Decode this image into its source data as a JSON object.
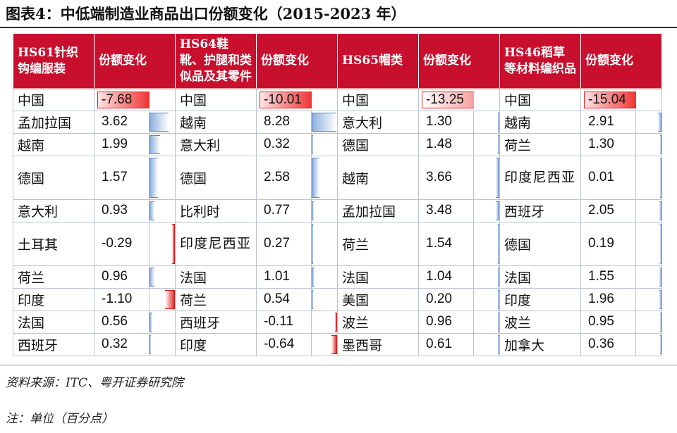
{
  "figure_title": "图表4：中低端制造业商品出口份额变化（2015-2023 年）",
  "columns": [
    {
      "category": "HS61针织钩编服装",
      "value_header": "份额变化",
      "rows": [
        {
          "country": "中国",
          "value": "-7.68",
          "v": -7.68
        },
        {
          "country": "孟加拉国",
          "value": "3.62",
          "v": 3.62
        },
        {
          "country": "越南",
          "value": "1.99",
          "v": 1.99
        },
        {
          "country": "德国",
          "value": "1.57",
          "v": 1.57
        },
        {
          "country": "意大利",
          "value": "0.93",
          "v": 0.93
        },
        {
          "country": "土耳其",
          "value": "-0.29",
          "v": -0.29
        },
        {
          "country": "荷兰",
          "value": "0.96",
          "v": 0.96
        },
        {
          "country": "印度",
          "value": "-1.10",
          "v": -1.1
        },
        {
          "country": "法国",
          "value": "0.56",
          "v": 0.56
        },
        {
          "country": "西班牙",
          "value": "0.32",
          "v": 0.32
        }
      ]
    },
    {
      "category": "HS64鞋靴、护腿和类似品及其零件",
      "value_header": "份额变化",
      "rows": [
        {
          "country": "中国",
          "value": "-10.01",
          "v": -10.01
        },
        {
          "country": "越南",
          "value": "8.28",
          "v": 8.28
        },
        {
          "country": "意大利",
          "value": "0.32",
          "v": 0.32
        },
        {
          "country": "德国",
          "value": "2.58",
          "v": 2.58
        },
        {
          "country": "比利时",
          "value": "0.77",
          "v": 0.77
        },
        {
          "country": "印度尼西亚",
          "value": "0.27",
          "v": 0.27
        },
        {
          "country": "法国",
          "value": "1.01",
          "v": 1.01
        },
        {
          "country": "荷兰",
          "value": "0.54",
          "v": 0.54
        },
        {
          "country": "西班牙",
          "value": "-0.11",
          "v": -0.11
        },
        {
          "country": "印度",
          "value": "-0.64",
          "v": -0.64
        }
      ]
    },
    {
      "category": "HS65帽类",
      "value_header": "份额变化",
      "rows": [
        {
          "country": "中国",
          "value": "-13.25",
          "v": -13.25
        },
        {
          "country": "意大利",
          "value": "1.30",
          "v": 1.3
        },
        {
          "country": "德国",
          "value": "1.48",
          "v": 1.48
        },
        {
          "country": "越南",
          "value": "3.66",
          "v": 3.66
        },
        {
          "country": "孟加拉国",
          "value": "3.48",
          "v": 3.48
        },
        {
          "country": "荷兰",
          "value": "1.54",
          "v": 1.54
        },
        {
          "country": "法国",
          "value": "1.04",
          "v": 1.04
        },
        {
          "country": "美国",
          "value": "0.20",
          "v": 0.2
        },
        {
          "country": "波兰",
          "value": "0.96",
          "v": 0.96
        },
        {
          "country": "墨西哥",
          "value": "0.61",
          "v": 0.61
        }
      ]
    },
    {
      "category": "HS46稻草等材料编织品",
      "value_header": "份额变化",
      "rows": [
        {
          "country": "中国",
          "value": "-15.04",
          "v": -15.04
        },
        {
          "country": "越南",
          "value": "2.91",
          "v": 2.91
        },
        {
          "country": "荷兰",
          "value": "1.30",
          "v": 1.3
        },
        {
          "country": "印度尼西亚",
          "value": "0.01",
          "v": 0.01
        },
        {
          "country": "西班牙",
          "value": "2.05",
          "v": 2.05
        },
        {
          "country": "德国",
          "value": "0.19",
          "v": 0.19
        },
        {
          "country": "法国",
          "value": "1.55",
          "v": 1.55
        },
        {
          "country": "印度",
          "value": "1.96",
          "v": 1.96
        },
        {
          "country": "波兰",
          "value": "0.95",
          "v": 0.95
        },
        {
          "country": "加拿大",
          "value": "0.36",
          "v": 0.36
        }
      ]
    }
  ],
  "source": "资料来源：ITC、粤开证券研究院",
  "note": "注：单位（百分点）",
  "colors": {
    "header_bg": "#c8102e",
    "positive_bar": "#8eb0df",
    "negative_bar": "#e23030"
  }
}
